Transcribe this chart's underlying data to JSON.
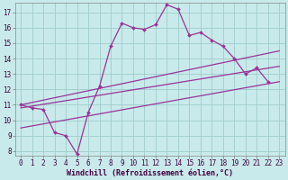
{
  "xlabel": "Windchill (Refroidissement éolien,°C)",
  "x_data": [
    0,
    1,
    2,
    3,
    4,
    5,
    6,
    7,
    8,
    9,
    10,
    11,
    12,
    13,
    14,
    15,
    16,
    17,
    18,
    19,
    20,
    21,
    22,
    23
  ],
  "y_main": [
    11.0,
    10.8,
    10.7,
    9.2,
    9.0,
    7.8,
    10.5,
    12.2,
    14.8,
    16.3,
    16.0,
    15.9,
    16.2,
    17.5,
    17.2,
    15.5,
    15.7,
    15.2,
    14.8,
    14.0,
    13.0,
    13.4,
    12.5,
    null
  ],
  "trend1_x": [
    0,
    23
  ],
  "trend1_y": [
    11.0,
    14.5
  ],
  "trend2_x": [
    0,
    23
  ],
  "trend2_y": [
    10.8,
    13.5
  ],
  "trend3_x": [
    0,
    23
  ],
  "trend3_y": [
    9.5,
    12.5
  ],
  "line_color": "#993399",
  "bg_color": "#c8eaea",
  "grid_color": "#a0cccc",
  "ylim_min": 7.7,
  "ylim_max": 17.6,
  "xlim_min": -0.5,
  "xlim_max": 23.5,
  "yticks": [
    8,
    9,
    10,
    11,
    12,
    13,
    14,
    15,
    16,
    17
  ],
  "xticks": [
    0,
    1,
    2,
    3,
    4,
    5,
    6,
    7,
    8,
    9,
    10,
    11,
    12,
    13,
    14,
    15,
    16,
    17,
    18,
    19,
    20,
    21,
    22,
    23
  ],
  "tick_fontsize": 5.5,
  "xlabel_fontsize": 6.0
}
